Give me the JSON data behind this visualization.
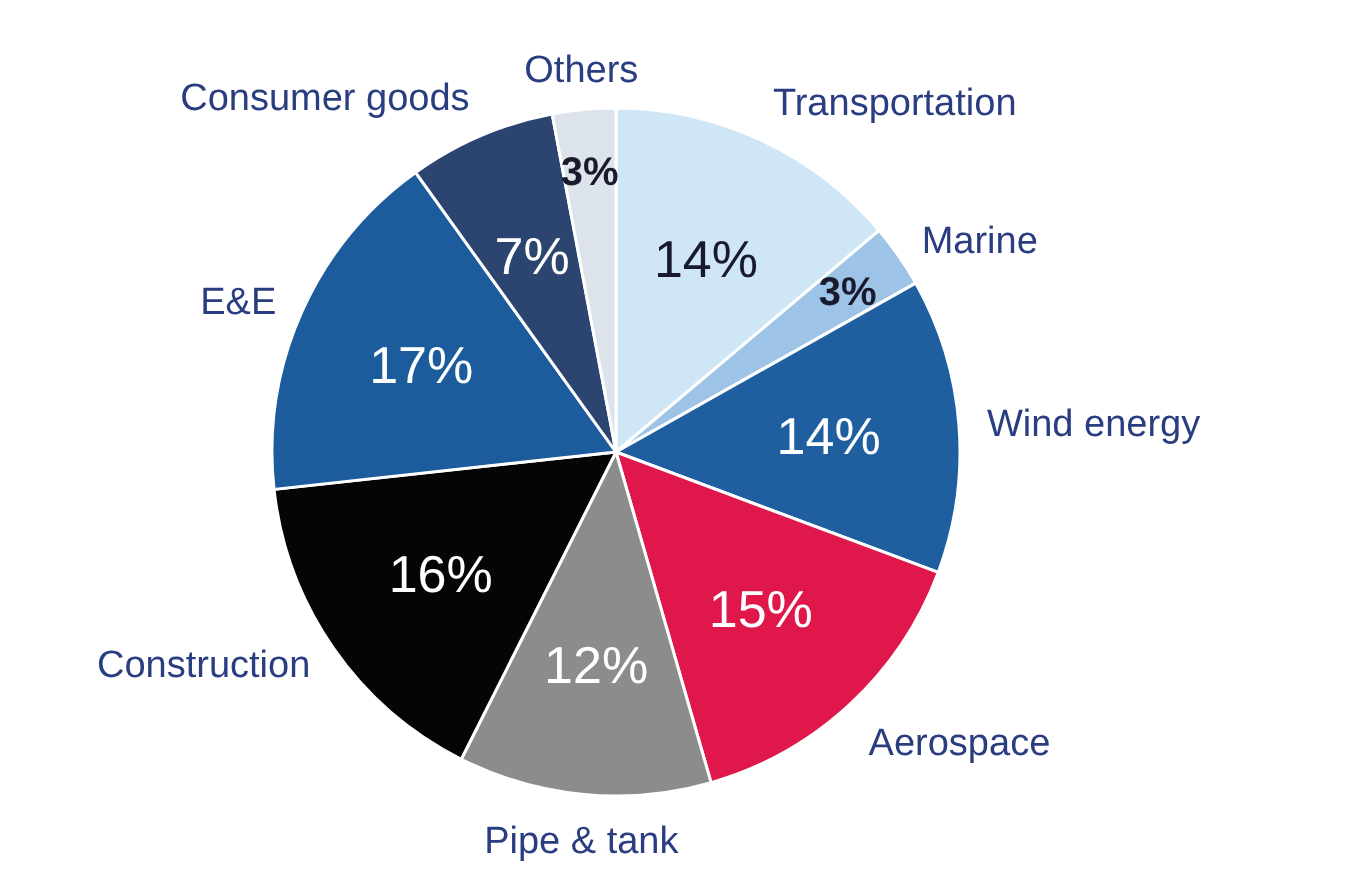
{
  "chart_data": {
    "type": "pie",
    "categories": [
      "Transportation",
      "Marine",
      "Wind energy",
      "Aerospace",
      "Pipe & tank",
      "Construction",
      "E&E",
      "Consumer goods",
      "Others"
    ],
    "values": [
      14,
      3,
      14,
      15,
      12,
      16,
      17,
      7,
      3
    ],
    "value_labels": [
      "14%",
      "3%",
      "14%",
      "15%",
      "12%",
      "16%",
      "17%",
      "7%",
      "3%"
    ],
    "colors": [
      "#cfe6f7",
      "#9dc3e6",
      "#1f5fa0",
      "#e0174a",
      "#8c8c8c",
      "#050505",
      "#1d5c9c",
      "#2b4470",
      "#dde3ea"
    ]
  }
}
